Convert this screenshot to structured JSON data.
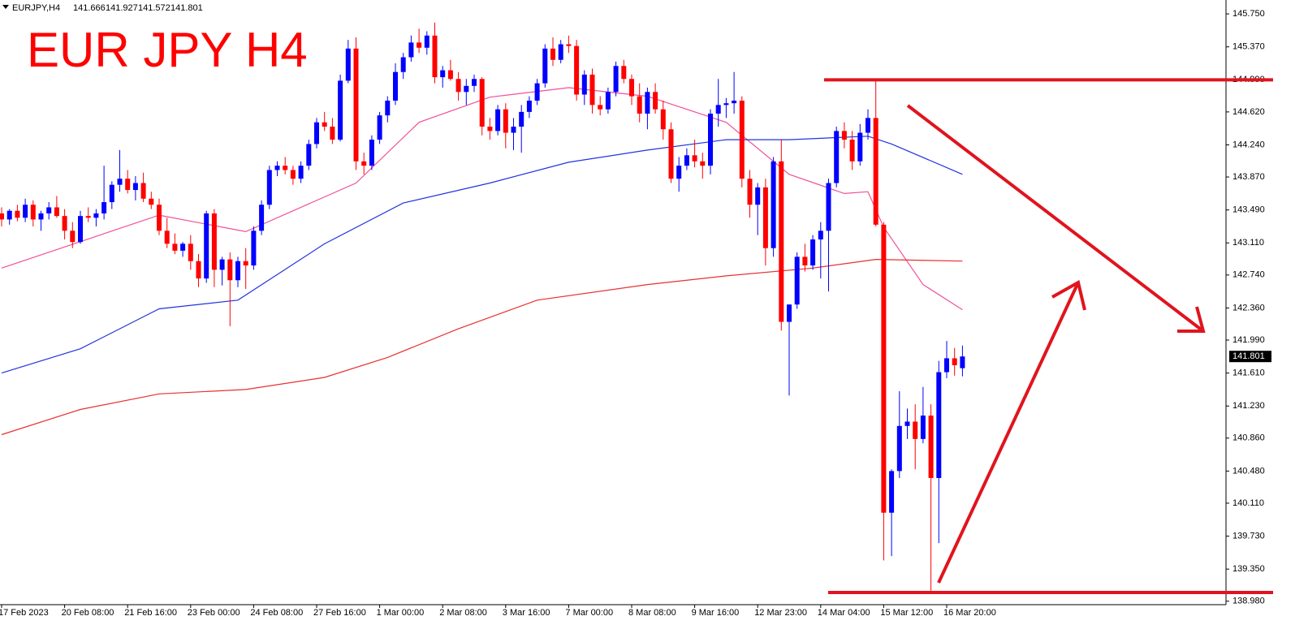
{
  "chart_data": {
    "type": "candlestick",
    "title": "EUR JPY H4",
    "symbol": "EURJPY,H4",
    "ohlc": [
      141.666,
      141.927,
      141.572,
      141.801
    ],
    "current_price": 141.801,
    "bull_color": "#0000ff",
    "bear_color": "#ff0000",
    "ylim": [
      138.94,
      145.91
    ],
    "yticks": [
      {
        "value": 145.75,
        "label": "145.750"
      },
      {
        "value": 145.37,
        "label": "145.370"
      },
      {
        "value": 144.99,
        "label": "144.990"
      },
      {
        "value": 144.62,
        "label": "144.620"
      },
      {
        "value": 144.24,
        "label": "144.240"
      },
      {
        "value": 143.87,
        "label": "143.870"
      },
      {
        "value": 143.49,
        "label": "143.490"
      },
      {
        "value": 143.11,
        "label": "143.110"
      },
      {
        "value": 142.74,
        "label": "142.740"
      },
      {
        "value": 142.36,
        "label": "142.360"
      },
      {
        "value": 141.99,
        "label": "141.990"
      },
      {
        "value": 141.61,
        "label": "141.610"
      },
      {
        "value": 141.23,
        "label": "141.230"
      },
      {
        "value": 140.86,
        "label": "140.860"
      },
      {
        "value": 140.48,
        "label": "140.480"
      },
      {
        "value": 140.11,
        "label": "140.110"
      },
      {
        "value": 139.73,
        "label": "139.730"
      },
      {
        "value": 139.35,
        "label": "139.350"
      },
      {
        "value": 138.98,
        "label": "138.980"
      }
    ],
    "categories": [
      "17 Feb 2023",
      null,
      null,
      null,
      null,
      null,
      null,
      null,
      "20 Feb 08:00",
      null,
      null,
      null,
      null,
      null,
      null,
      null,
      "21 Feb 16:00",
      null,
      null,
      null,
      null,
      null,
      null,
      null,
      "23 Feb 00:00",
      null,
      null,
      null,
      null,
      null,
      null,
      null,
      "24 Feb 08:00",
      null,
      null,
      null,
      null,
      null,
      null,
      null,
      "27 Feb 16:00",
      null,
      null,
      null,
      null,
      null,
      null,
      null,
      "1 Mar 00:00",
      null,
      null,
      null,
      null,
      null,
      null,
      null,
      "2 Mar 08:00",
      null,
      null,
      null,
      null,
      null,
      null,
      null,
      "3 Mar 16:00",
      null,
      null,
      null,
      null,
      null,
      null,
      null,
      "7 Mar 00:00",
      null,
      null,
      null,
      null,
      null,
      null,
      null,
      "8 Mar 08:00",
      null,
      null,
      null,
      null,
      null,
      null,
      null,
      "9 Mar 16:00",
      null,
      null,
      null,
      null,
      null,
      null,
      null,
      "12 Mar 23:00",
      null,
      null,
      null,
      null,
      null,
      null,
      null,
      "14 Mar 04:00",
      null,
      null,
      null,
      null,
      null,
      null,
      null,
      "15 Mar 12:00",
      null,
      null,
      null,
      null,
      null,
      null,
      null,
      "16 Mar 20:00",
      null,
      null
    ],
    "candles": [
      [
        143.45,
        143.52,
        143.3,
        143.38
      ],
      [
        143.38,
        143.5,
        143.32,
        143.48
      ],
      [
        143.48,
        143.55,
        143.36,
        143.4
      ],
      [
        143.4,
        143.62,
        143.35,
        143.55
      ],
      [
        143.55,
        143.6,
        143.3,
        143.38
      ],
      [
        143.38,
        143.48,
        143.25,
        143.45
      ],
      [
        143.45,
        143.58,
        143.38,
        143.52
      ],
      [
        143.52,
        143.65,
        143.4,
        143.42
      ],
      [
        143.42,
        143.5,
        143.15,
        143.25
      ],
      [
        143.25,
        143.35,
        143.05,
        143.12
      ],
      [
        143.12,
        143.48,
        143.1,
        143.42
      ],
      [
        143.42,
        143.52,
        143.35,
        143.4
      ],
      [
        143.4,
        143.5,
        143.3,
        143.45
      ],
      [
        143.45,
        144.0,
        143.38,
        143.58
      ],
      [
        143.58,
        143.82,
        143.5,
        143.78
      ],
      [
        143.78,
        144.18,
        143.7,
        143.85
      ],
      [
        143.85,
        143.95,
        143.68,
        143.72
      ],
      [
        143.72,
        143.88,
        143.6,
        143.8
      ],
      [
        143.8,
        143.92,
        143.58,
        143.62
      ],
      [
        143.62,
        143.7,
        143.5,
        143.55
      ],
      [
        143.55,
        143.62,
        143.2,
        143.25
      ],
      [
        143.25,
        143.4,
        143.05,
        143.1
      ],
      [
        143.1,
        143.22,
        142.98,
        143.02
      ],
      [
        143.02,
        143.12,
        142.95,
        143.1
      ],
      [
        143.1,
        143.2,
        142.8,
        142.9
      ],
      [
        142.9,
        142.98,
        142.6,
        142.7
      ],
      [
        142.7,
        143.48,
        142.65,
        143.45
      ],
      [
        143.45,
        143.5,
        142.6,
        142.8
      ],
      [
        142.8,
        142.95,
        142.62,
        142.92
      ],
      [
        142.92,
        143.0,
        142.15,
        142.68
      ],
      [
        142.68,
        142.95,
        142.6,
        142.9
      ],
      [
        142.9,
        143.05,
        142.58,
        142.85
      ],
      [
        142.85,
        143.3,
        142.8,
        143.25
      ],
      [
        143.25,
        143.6,
        143.2,
        143.55
      ],
      [
        143.55,
        144.0,
        143.5,
        143.95
      ],
      [
        143.95,
        144.05,
        143.88,
        144.0
      ],
      [
        144.0,
        144.1,
        143.9,
        143.95
      ],
      [
        143.95,
        144.0,
        143.78,
        143.85
      ],
      [
        143.85,
        144.05,
        143.8,
        144.0
      ],
      [
        144.0,
        144.3,
        143.95,
        144.25
      ],
      [
        144.25,
        144.55,
        144.2,
        144.5
      ],
      [
        144.5,
        144.62,
        144.4,
        144.45
      ],
      [
        144.45,
        144.55,
        144.25,
        144.3
      ],
      [
        144.3,
        145.05,
        144.28,
        144.98
      ],
      [
        144.98,
        145.45,
        144.95,
        145.35
      ],
      [
        145.35,
        145.48,
        143.95,
        144.05
      ],
      [
        144.05,
        144.15,
        143.9,
        144.0
      ],
      [
        144.0,
        144.35,
        143.95,
        144.3
      ],
      [
        144.3,
        144.62,
        144.25,
        144.58
      ],
      [
        144.58,
        144.8,
        144.5,
        144.75
      ],
      [
        144.75,
        145.18,
        144.7,
        145.08
      ],
      [
        145.08,
        145.3,
        145.0,
        145.25
      ],
      [
        145.25,
        145.5,
        145.2,
        145.42
      ],
      [
        145.42,
        145.58,
        145.3,
        145.36
      ],
      [
        145.36,
        145.55,
        145.28,
        145.5
      ],
      [
        145.5,
        145.65,
        144.95,
        145.02
      ],
      [
        145.02,
        145.15,
        144.9,
        145.1
      ],
      [
        145.1,
        145.22,
        144.98,
        145.0
      ],
      [
        145.0,
        145.08,
        144.75,
        144.85
      ],
      [
        144.85,
        145.0,
        144.7,
        144.92
      ],
      [
        144.92,
        145.05,
        144.85,
        145.0
      ],
      [
        145.0,
        145.02,
        144.35,
        144.45
      ],
      [
        144.45,
        144.55,
        144.3,
        144.4
      ],
      [
        144.4,
        144.7,
        144.35,
        144.65
      ],
      [
        144.65,
        144.72,
        144.2,
        144.38
      ],
      [
        144.38,
        144.55,
        144.18,
        144.45
      ],
      [
        144.45,
        144.7,
        144.15,
        144.62
      ],
      [
        144.62,
        144.8,
        144.55,
        144.75
      ],
      [
        144.75,
        145.0,
        144.7,
        144.95
      ],
      [
        144.95,
        145.4,
        144.9,
        145.35
      ],
      [
        145.35,
        145.48,
        145.15,
        145.22
      ],
      [
        145.22,
        145.45,
        145.18,
        145.4
      ],
      [
        145.4,
        145.5,
        145.3,
        145.38
      ],
      [
        145.38,
        145.45,
        144.75,
        144.82
      ],
      [
        144.82,
        145.1,
        144.7,
        145.05
      ],
      [
        145.05,
        145.12,
        144.6,
        144.7
      ],
      [
        144.7,
        144.8,
        144.58,
        144.65
      ],
      [
        144.65,
        144.9,
        144.6,
        144.85
      ],
      [
        144.85,
        145.2,
        144.8,
        145.15
      ],
      [
        145.15,
        145.22,
        144.95,
        145.0
      ],
      [
        145.0,
        145.05,
        144.7,
        144.8
      ],
      [
        144.8,
        144.95,
        144.5,
        144.6
      ],
      [
        144.6,
        144.9,
        144.42,
        144.85
      ],
      [
        144.85,
        144.95,
        144.6,
        144.65
      ],
      [
        144.65,
        144.75,
        144.3,
        144.42
      ],
      [
        144.42,
        144.5,
        143.8,
        143.85
      ],
      [
        143.85,
        144.1,
        143.7,
        144.0
      ],
      [
        144.0,
        144.2,
        143.95,
        144.12
      ],
      [
        144.12,
        144.3,
        143.98,
        144.05
      ],
      [
        144.05,
        144.15,
        143.85,
        144.0
      ],
      [
        144.0,
        144.65,
        143.9,
        144.6
      ],
      [
        144.6,
        145.0,
        144.45,
        144.7
      ],
      [
        144.7,
        144.78,
        144.55,
        144.72
      ],
      [
        144.72,
        145.08,
        144.6,
        144.75
      ],
      [
        144.75,
        144.8,
        143.75,
        143.85
      ],
      [
        143.85,
        143.95,
        143.4,
        143.55
      ],
      [
        143.55,
        143.8,
        143.2,
        143.75
      ],
      [
        143.75,
        143.85,
        142.85,
        143.05
      ],
      [
        143.05,
        144.1,
        142.95,
        144.05
      ],
      [
        144.05,
        144.3,
        142.1,
        142.2
      ],
      [
        142.2,
        142.4,
        141.35,
        142.4
      ],
      [
        142.4,
        143.0,
        142.35,
        142.95
      ],
      [
        142.95,
        143.1,
        142.78,
        142.85
      ],
      [
        142.85,
        143.2,
        142.8,
        143.15
      ],
      [
        143.15,
        143.35,
        142.7,
        143.25
      ],
      [
        143.25,
        143.85,
        142.55,
        143.8
      ],
      [
        143.8,
        144.45,
        143.75,
        144.4
      ],
      [
        144.4,
        144.5,
        144.2,
        144.3
      ],
      [
        144.3,
        144.4,
        143.95,
        144.05
      ],
      [
        144.05,
        144.48,
        144.0,
        144.38
      ],
      [
        144.38,
        144.65,
        144.3,
        144.55
      ],
      [
        144.55,
        144.98,
        143.3,
        143.32
      ],
      [
        143.32,
        143.35,
        139.45,
        140.0
      ],
      [
        140.0,
        140.5,
        139.5,
        140.48
      ],
      [
        140.48,
        141.4,
        140.4,
        141.0
      ],
      [
        141.0,
        141.2,
        140.85,
        141.05
      ],
      [
        141.05,
        141.25,
        140.5,
        140.85
      ],
      [
        140.85,
        141.45,
        140.8,
        141.12
      ],
      [
        141.12,
        141.25,
        139.1,
        140.4
      ],
      [
        140.4,
        141.75,
        139.65,
        141.62
      ],
      [
        141.62,
        141.98,
        141.55,
        141.78
      ],
      [
        141.78,
        141.9,
        141.58,
        141.7
      ],
      [
        141.666,
        141.927,
        141.572,
        141.801
      ]
    ],
    "moving_averages": [
      {
        "color": "#f0509a",
        "x": [
          0,
          20,
          31,
          45,
          53,
          62,
          72,
          82,
          92,
          100,
          107,
          110,
          112,
          117,
          122
        ],
        "values": [
          142.82,
          143.43,
          143.24,
          143.8,
          144.5,
          144.79,
          144.9,
          144.8,
          144.5,
          143.9,
          143.68,
          143.7,
          143.29,
          142.63,
          142.34
        ]
      },
      {
        "color": "#2233dd",
        "x": [
          0,
          10,
          20,
          30,
          41,
          51,
          62,
          72,
          82,
          92,
          100,
          110,
          113,
          122
        ],
        "values": [
          141.61,
          141.89,
          142.35,
          142.45,
          143.1,
          143.57,
          143.8,
          144.04,
          144.18,
          144.3,
          144.3,
          144.34,
          144.25,
          143.9
        ]
      },
      {
        "color": "#e83030",
        "x": [
          0,
          10,
          20,
          31,
          41,
          49,
          58,
          68,
          82,
          92,
          103,
          111,
          122
        ],
        "values": [
          140.9,
          141.19,
          141.37,
          141.42,
          141.56,
          141.79,
          142.12,
          142.45,
          142.63,
          142.73,
          142.82,
          142.92,
          142.9
        ]
      }
    ],
    "levels": [
      144.99,
      139.08
    ],
    "level_color": "#e0141e"
  }
}
